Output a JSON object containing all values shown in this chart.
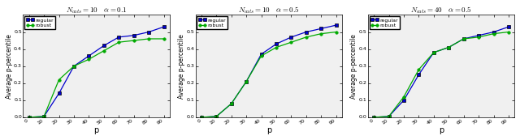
{
  "panels": [
    {
      "title": "$N_{cats} = 10$   $\\alpha = 0.1$",
      "x": [
        0,
        10,
        20,
        30,
        40,
        50,
        60,
        70,
        80,
        90
      ],
      "regular": [
        0.0,
        0.005,
        0.14,
        0.3,
        0.36,
        0.42,
        0.47,
        0.48,
        0.5,
        0.53
      ],
      "robust": [
        0.0,
        0.005,
        0.22,
        0.3,
        0.34,
        0.39,
        0.44,
        0.45,
        0.46,
        0.46
      ]
    },
    {
      "title": "$N_{cats} = 10$   $\\alpha = 0.5$",
      "x": [
        0,
        10,
        20,
        30,
        40,
        50,
        60,
        70,
        80,
        90
      ],
      "regular": [
        0.0,
        0.005,
        0.08,
        0.21,
        0.37,
        0.43,
        0.47,
        0.5,
        0.52,
        0.54
      ],
      "robust": [
        0.0,
        0.005,
        0.08,
        0.21,
        0.36,
        0.41,
        0.44,
        0.47,
        0.49,
        0.5
      ]
    },
    {
      "title": "$N_{cats} = 40$   $\\alpha = 0.5$",
      "x": [
        0,
        10,
        20,
        30,
        40,
        50,
        60,
        70,
        80,
        90
      ],
      "regular": [
        0.0,
        0.005,
        0.1,
        0.25,
        0.38,
        0.41,
        0.46,
        0.48,
        0.5,
        0.53
      ],
      "robust": [
        0.0,
        0.005,
        0.12,
        0.28,
        0.38,
        0.41,
        0.46,
        0.47,
        0.49,
        0.5
      ]
    }
  ],
  "xlabel": "p",
  "ylabel": "Average p-percentile",
  "regular_color": "#0000cc",
  "robust_color": "#00aa00",
  "regular_label": "regular",
  "robust_label": "robust",
  "ylim": [
    0.0,
    0.6
  ],
  "yticks": [
    0.0,
    0.1,
    0.2,
    0.3,
    0.4,
    0.5
  ],
  "bg_color": "#f0f0f0",
  "fig_bg": "#f0f0f0"
}
